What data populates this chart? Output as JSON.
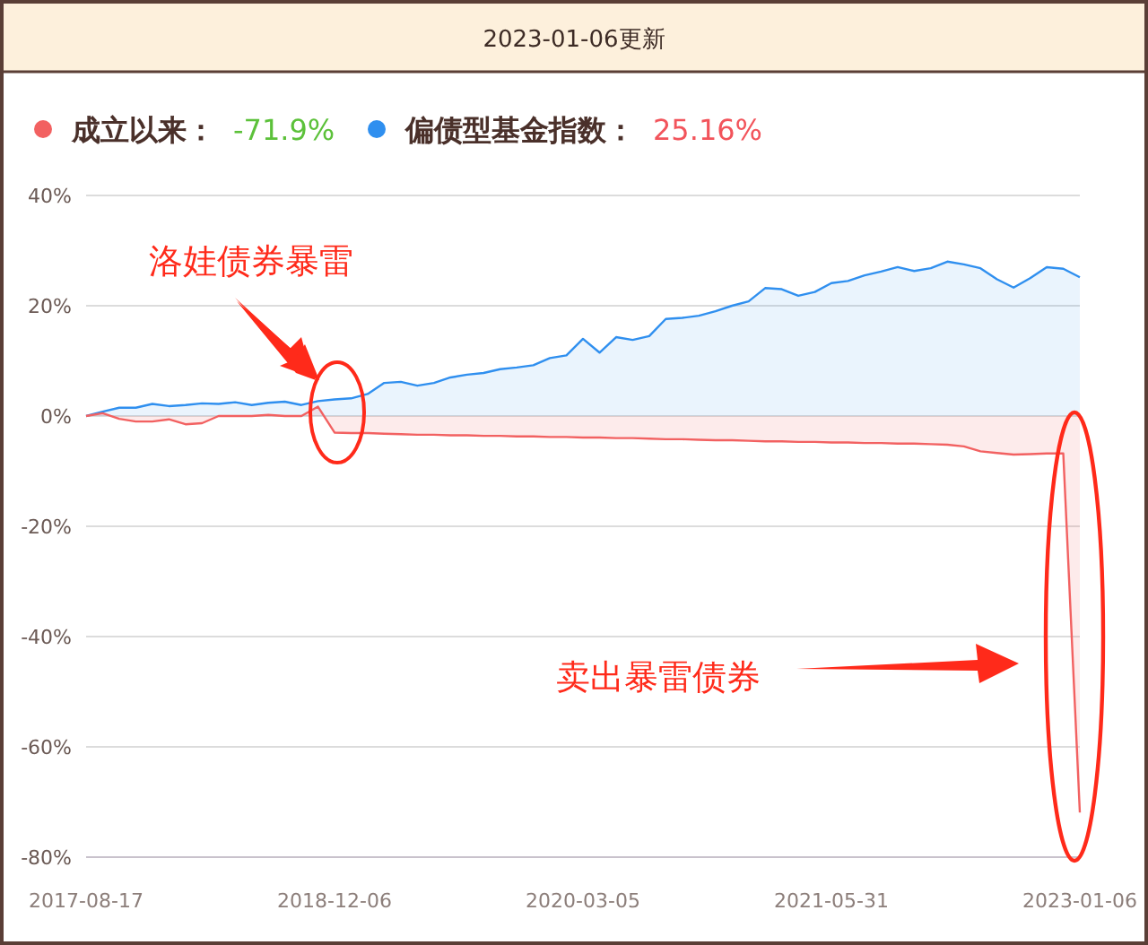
{
  "chart_data": {
    "type": "area",
    "title": "2023-01-06更新",
    "categories": [
      "2017-08-17",
      null,
      null,
      null,
      null,
      null,
      null,
      null,
      null,
      null,
      null,
      null,
      null,
      null,
      null,
      "2018-12-06",
      null,
      null,
      null,
      null,
      null,
      null,
      null,
      null,
      null,
      null,
      null,
      null,
      null,
      null,
      "2020-03-05",
      null,
      null,
      null,
      null,
      null,
      null,
      null,
      null,
      null,
      null,
      null,
      null,
      null,
      null,
      "2021-05-31",
      null,
      null,
      null,
      null,
      null,
      null,
      null,
      null,
      null,
      null,
      null,
      null,
      null,
      null,
      "2023-01-06"
    ],
    "series": [
      {
        "name": "成立以来：",
        "color": "#f26161",
        "values": [
          0,
          0.5,
          -0.5,
          -1.0,
          -1.0,
          -0.6,
          -1.5,
          -1.3,
          0,
          0,
          0,
          0.2,
          0,
          0,
          1.7,
          -3.0,
          -3.1,
          -3.1,
          -3.2,
          -3.3,
          -3.4,
          -3.4,
          -3.5,
          -3.5,
          -3.6,
          -3.6,
          -3.7,
          -3.7,
          -3.8,
          -3.8,
          -3.9,
          -3.9,
          -4.0,
          -4.0,
          -4.1,
          -4.2,
          -4.2,
          -4.3,
          -4.4,
          -4.4,
          -4.5,
          -4.6,
          -4.6,
          -4.7,
          -4.7,
          -4.8,
          -4.8,
          -4.9,
          -4.9,
          -5.0,
          -5.0,
          -5.1,
          -5.2,
          -5.5,
          -6.4,
          -6.7,
          -7.0,
          -6.9,
          -6.8,
          -6.8,
          -71.9
        ]
      },
      {
        "name": "偏债型基金指数：",
        "color": "#2f8fef",
        "values": [
          0,
          0.8,
          1.5,
          1.5,
          2.2,
          1.8,
          2.0,
          2.3,
          2.2,
          2.5,
          2.0,
          2.4,
          2.6,
          2.0,
          2.7,
          3.0,
          3.2,
          4.0,
          6.0,
          6.2,
          5.5,
          6.0,
          7.0,
          7.5,
          7.8,
          8.5,
          8.8,
          9.2,
          10.5,
          11.0,
          14.0,
          11.5,
          14.3,
          13.8,
          14.5,
          17.6,
          17.8,
          18.2,
          19.0,
          20.0,
          20.8,
          23.2,
          23.0,
          21.8,
          22.5,
          24.1,
          24.5,
          25.5,
          26.2,
          27.0,
          26.3,
          26.8,
          28.0,
          27.5,
          26.8,
          24.8,
          23.3,
          25.0,
          27.0,
          26.7,
          25.16
        ]
      }
    ],
    "ylim": [
      -80,
      40
    ],
    "yticks": [
      {
        "value": -80,
        "label": "-80%"
      },
      {
        "value": -60,
        "label": "-60%"
      },
      {
        "value": -40,
        "label": "-40%"
      },
      {
        "value": -20,
        "label": "-20%"
      },
      {
        "value": 0,
        "label": "0%"
      },
      {
        "value": 20,
        "label": "20%"
      },
      {
        "value": 40,
        "label": "40%"
      }
    ],
    "grid": "y",
    "legend": "top left",
    "annotations": [
      "-71.9%",
      "25.16%",
      "洛娃债券暴雷",
      "卖出暴雷债券"
    ]
  }
}
